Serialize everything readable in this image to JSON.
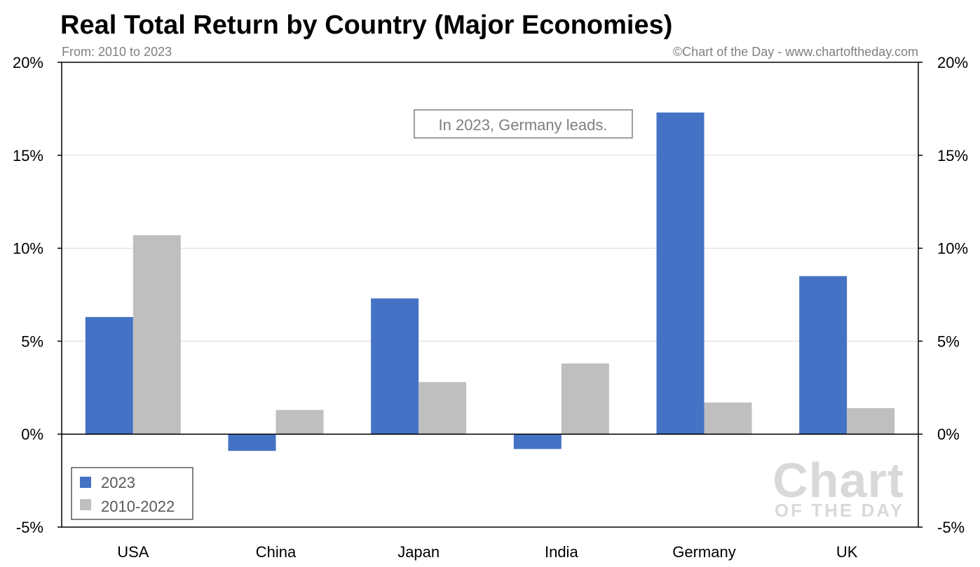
{
  "chart_data": {
    "type": "bar",
    "title": "Real Total Return by Country (Major Economies)",
    "subtitle": "From: 2010 to 2023",
    "source": "©Chart of the Day - www.chartoftheday.com",
    "categories": [
      "USA",
      "China",
      "Japan",
      "India",
      "Germany",
      "UK"
    ],
    "series": [
      {
        "name": "2023",
        "color": "#4472c4",
        "values": [
          6.3,
          -0.9,
          7.3,
          -0.8,
          17.3,
          8.5
        ]
      },
      {
        "name": "2010-2022",
        "color": "#bfbfbf",
        "values": [
          10.7,
          1.3,
          2.8,
          3.8,
          1.7,
          1.4
        ]
      }
    ],
    "ylim": [
      -5,
      20
    ],
    "yticks": [
      20,
      15,
      10,
      5,
      0,
      -5
    ],
    "ytick_labels": [
      "20%",
      "15%",
      "10%",
      "5%",
      "0%",
      "-5%"
    ],
    "y_axis_both_sides": true,
    "grid": true,
    "legend_position": "bottom-left",
    "annotation": "In 2023, Germany leads.",
    "watermark": {
      "line1": "Chart",
      "line2": "OF THE DAY"
    },
    "xlabel": "",
    "ylabel": ""
  }
}
